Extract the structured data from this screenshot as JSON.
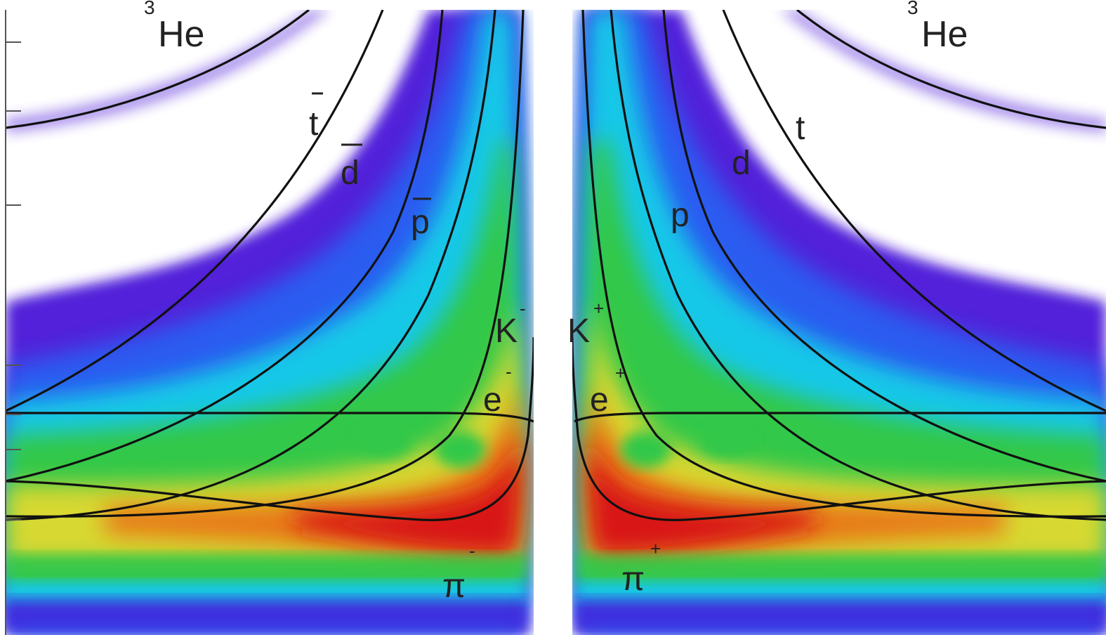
{
  "chart_data": {
    "type": "heatmap",
    "description_note": "",
    "title": "",
    "xlabel": "",
    "ylabel": "",
    "grid": false,
    "legend": "none",
    "colors": {
      "density_scale": [
        "#4a14d8",
        "#2a5cf0",
        "#18c8e8",
        "#30c848",
        "#d8d830",
        "#e87818",
        "#d81818"
      ],
      "curve": "#111111",
      "frame": "#555555"
    },
    "labels": {
      "he3_neg": {
        "mass": "3",
        "name": "He"
      },
      "he3_pos": {
        "mass": "3",
        "name": "He"
      },
      "tbar": {
        "name": "t"
      },
      "dbar": {
        "name": "d"
      },
      "pbar": {
        "name": "p"
      },
      "kminus": {
        "name": "K",
        "charge": "-"
      },
      "eminus": {
        "name": "e",
        "charge": "-"
      },
      "piminus": {
        "name": "π",
        "charge": "-"
      },
      "t": {
        "name": "t"
      },
      "d": {
        "name": "d"
      },
      "p": {
        "name": "p"
      },
      "kplus": {
        "name": "K",
        "charge": "+"
      },
      "eplus": {
        "name": "e",
        "charge": "+"
      },
      "piplus": {
        "name": "π",
        "charge": "+"
      }
    }
  }
}
